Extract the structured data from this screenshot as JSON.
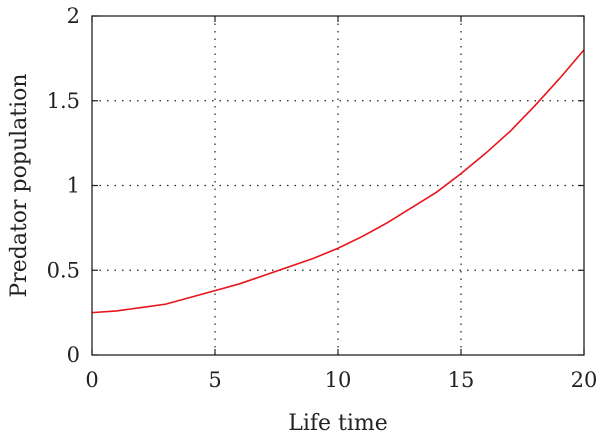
{
  "chart_data": {
    "type": "line",
    "title": "",
    "xlabel": "Life time",
    "ylabel": "Predator population",
    "xlim": [
      0,
      20
    ],
    "ylim": [
      0,
      2
    ],
    "xticks": [
      0,
      5,
      10,
      15,
      20
    ],
    "yticks": [
      0,
      0.5,
      1,
      1.5,
      2
    ],
    "xtick_labels": [
      "0",
      "5",
      "10",
      "15",
      "20"
    ],
    "ytick_labels": [
      "0",
      "0.5",
      "1",
      "1.5",
      "2"
    ],
    "grid": true,
    "series": [
      {
        "color": "#e8141b",
        "x": [
          0,
          1,
          2,
          3,
          4,
          5,
          6,
          7,
          8,
          9,
          10,
          11,
          12,
          13,
          14,
          15,
          16,
          17,
          18,
          19,
          20
        ],
        "y": [
          0.25,
          0.26,
          0.28,
          0.3,
          0.34,
          0.38,
          0.42,
          0.47,
          0.52,
          0.57,
          0.63,
          0.7,
          0.78,
          0.87,
          0.96,
          1.07,
          1.19,
          1.32,
          1.47,
          1.63,
          1.8
        ]
      }
    ]
  }
}
